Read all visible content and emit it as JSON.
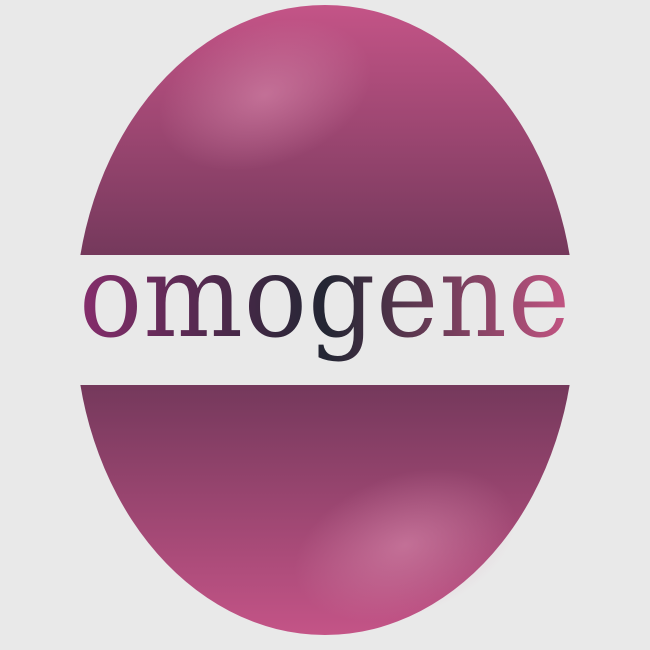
{
  "logo": {
    "wordmark": "omogene",
    "colors": {
      "background": "#e9e9e9",
      "band": "#e9e9e9",
      "dark": "#222630",
      "mid": "#6a3556",
      "pink": "#c45487",
      "highlight": "#d98fb0",
      "text_start": "#862d6c",
      "text_mid": "#232633",
      "text_end": "#c45583"
    }
  }
}
